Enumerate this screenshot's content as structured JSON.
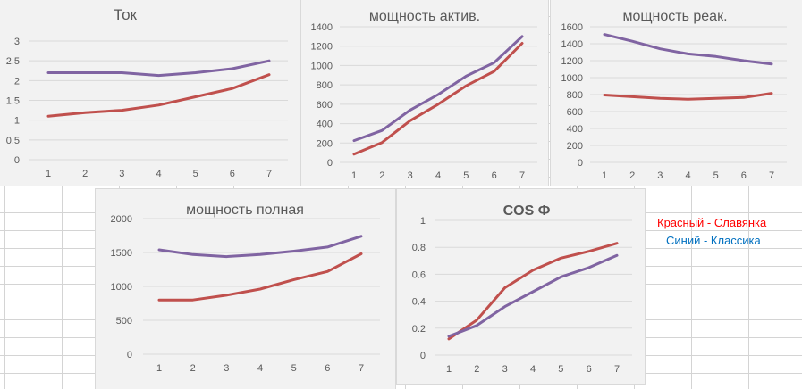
{
  "colors": {
    "red_series": "#c0504d",
    "purple_series": "#8064a2",
    "grid": "#d9d9d9",
    "axis_text": "#595959",
    "panel": "#f2f2f2"
  },
  "legend": {
    "red_label": "Красный - Славянка",
    "red_color": "#ff0000",
    "blue_label": "Синий - Классика",
    "blue_color": "#0070c0"
  },
  "chart_data": [
    {
      "type": "line",
      "title": "Ток",
      "categories": [
        "1",
        "2",
        "3",
        "4",
        "5",
        "6",
        "7"
      ],
      "ylim": [
        0,
        3
      ],
      "yticks": [
        "0",
        "0.5",
        "1",
        "1.5",
        "2",
        "2.5",
        "3"
      ],
      "grid": true,
      "series": [
        {
          "color": "#8064a2",
          "values": [
            2.2,
            2.2,
            2.2,
            2.13,
            2.2,
            2.3,
            2.5
          ]
        },
        {
          "color": "#c0504d",
          "values": [
            1.1,
            1.19,
            1.25,
            1.38,
            1.59,
            1.8,
            2.15
          ]
        }
      ]
    },
    {
      "type": "line",
      "title": "мощность актив.",
      "categories": [
        "1",
        "2",
        "3",
        "4",
        "5",
        "6",
        "7"
      ],
      "ylim": [
        0,
        1400
      ],
      "yticks": [
        "0",
        "200",
        "400",
        "600",
        "800",
        "1000",
        "1200",
        "1400"
      ],
      "grid": true,
      "series": [
        {
          "color": "#8064a2",
          "values": [
            225,
            330,
            540,
            700,
            890,
            1030,
            1300
          ]
        },
        {
          "color": "#c0504d",
          "values": [
            85,
            205,
            430,
            600,
            790,
            940,
            1230
          ]
        }
      ]
    },
    {
      "type": "line",
      "title": "мощность реак.",
      "categories": [
        "1",
        "2",
        "3",
        "4",
        "5",
        "6",
        "7"
      ],
      "ylim": [
        0,
        1600
      ],
      "yticks": [
        "0",
        "200",
        "400",
        "600",
        "800",
        "1000",
        "1200",
        "1400",
        "1600"
      ],
      "grid": true,
      "series": [
        {
          "color": "#8064a2",
          "values": [
            1510,
            1430,
            1340,
            1280,
            1250,
            1200,
            1160
          ]
        },
        {
          "color": "#c0504d",
          "values": [
            795,
            775,
            755,
            745,
            755,
            765,
            815
          ]
        }
      ]
    },
    {
      "type": "line",
      "title": "мощность полная",
      "categories": [
        "1",
        "2",
        "3",
        "4",
        "5",
        "6",
        "7"
      ],
      "ylim": [
        0,
        2000
      ],
      "yticks": [
        "0",
        "500",
        "1000",
        "1500",
        "2000"
      ],
      "grid": true,
      "series": [
        {
          "color": "#8064a2",
          "values": [
            1540,
            1470,
            1440,
            1470,
            1520,
            1580,
            1740
          ]
        },
        {
          "color": "#c0504d",
          "values": [
            800,
            800,
            870,
            960,
            1100,
            1220,
            1480
          ]
        }
      ]
    },
    {
      "type": "line",
      "title": "COS  Ф",
      "categories": [
        "1",
        "2",
        "3",
        "4",
        "5",
        "6",
        "7"
      ],
      "ylim": [
        0,
        1
      ],
      "yticks": [
        "0",
        "0.2",
        "0.4",
        "0.6",
        "0.8",
        "1"
      ],
      "grid": true,
      "series": [
        {
          "color": "#c0504d",
          "values": [
            0.12,
            0.26,
            0.5,
            0.63,
            0.72,
            0.77,
            0.83
          ]
        },
        {
          "color": "#8064a2",
          "values": [
            0.14,
            0.22,
            0.36,
            0.47,
            0.58,
            0.65,
            0.74
          ]
        }
      ]
    }
  ]
}
